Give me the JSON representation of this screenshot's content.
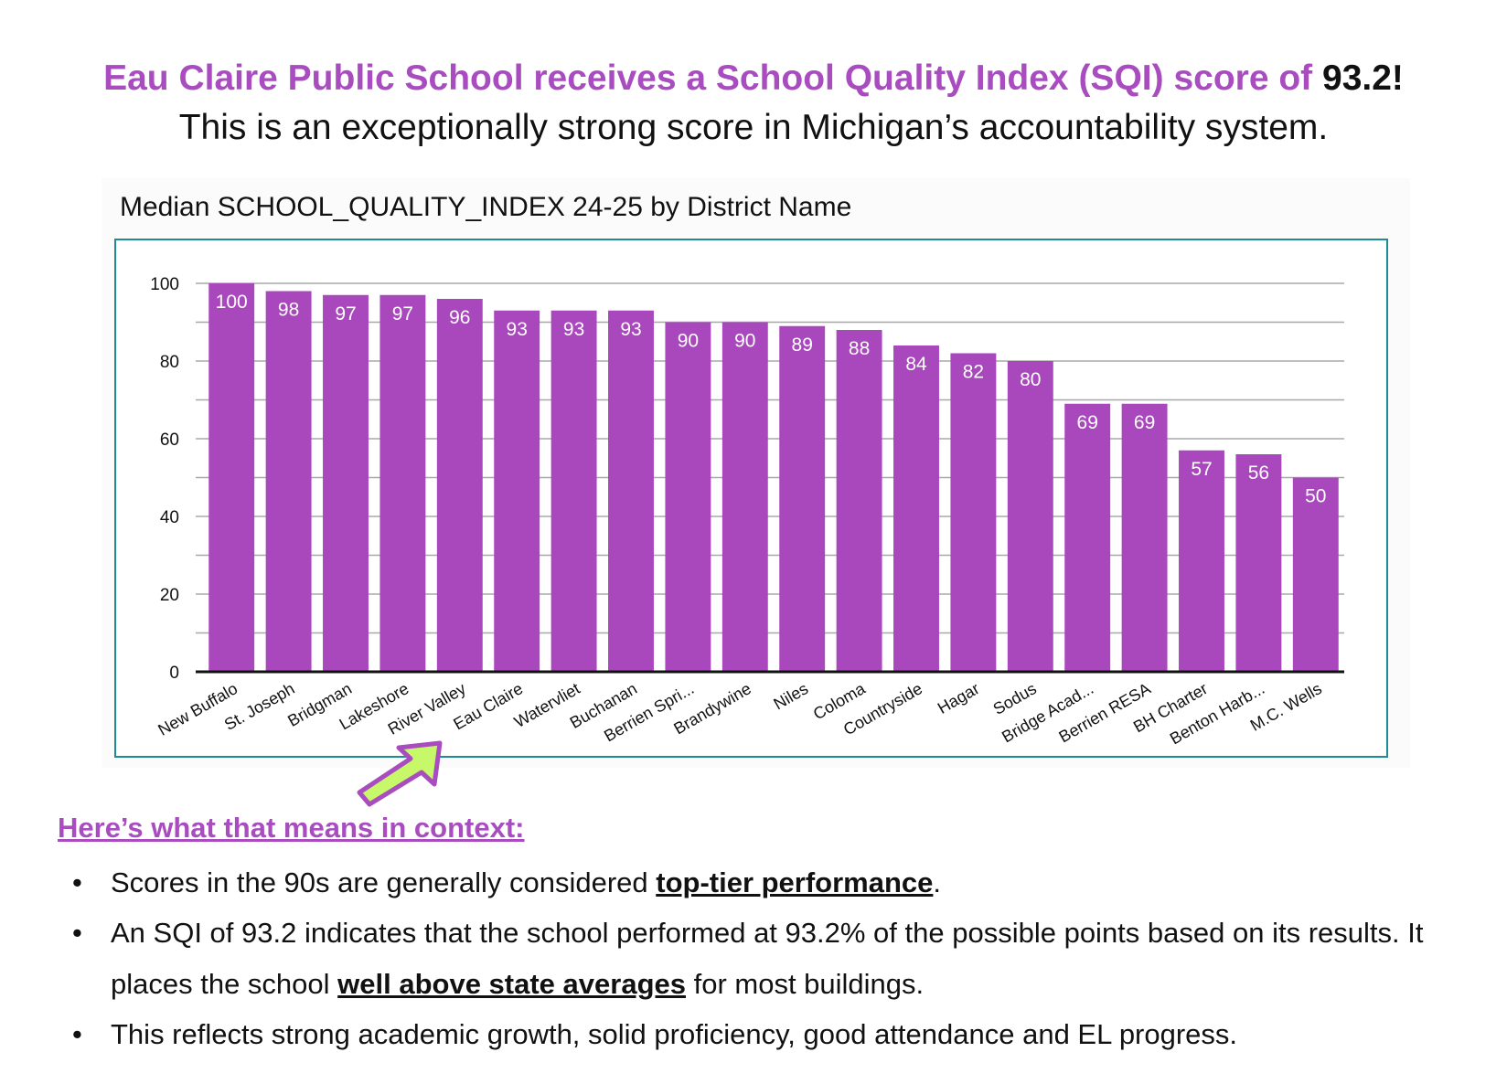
{
  "headline": {
    "line1_text": "Eau Claire Public School receives a School Quality Index (SQI) score of ",
    "line1_score": "93.2!",
    "line2": "This is an exceptionally strong score in Michigan’s accountability system."
  },
  "colors": {
    "accent": "#a84cc0",
    "bar": "#a947bd",
    "frame": "#1e8c94",
    "arrow_fill": "#c6f86a"
  },
  "chart_data": {
    "type": "bar",
    "title": "Median SCHOOL_QUALITY_INDEX 24-25 by District Name",
    "categories": [
      "New Buffalo",
      "St. Joseph",
      "Bridgman",
      "Lakeshore",
      "River Valley",
      "Eau Claire",
      "Watervliet",
      "Buchanan",
      "Berrien Spri...",
      "Brandywine",
      "Niles",
      "Coloma",
      "Countryside",
      "Hagar",
      "Sodus",
      "Bridge Acad...",
      "Berrien RESA",
      "BH Charter",
      "Benton Harb...",
      "M.C. Wells"
    ],
    "values": [
      100,
      98,
      97,
      97,
      96,
      93,
      93,
      93,
      90,
      90,
      89,
      88,
      84,
      82,
      80,
      69,
      69,
      57,
      56,
      50
    ],
    "ylim": [
      0,
      100
    ],
    "yticks": [
      0,
      20,
      40,
      60,
      80,
      100
    ],
    "grid": true,
    "data_labels": true,
    "highlight": "Eau Claire",
    "xlabel": "",
    "ylabel": ""
  },
  "context": {
    "heading": "Here’s what that means in context:",
    "bullets": [
      {
        "before": "Scores in the 90s are generally considered ",
        "emphasis": "top-tier performance",
        "after": "."
      },
      {
        "before": "An SQI of 93.2 indicates that the school performed at 93.2% of the possible points based on its results. It places the school ",
        "emphasis": "well above state averages",
        "after": " for most buildings."
      },
      {
        "before": "This reflects strong academic growth, solid proficiency,  good attendance and EL progress.",
        "emphasis": "",
        "after": ""
      }
    ]
  }
}
